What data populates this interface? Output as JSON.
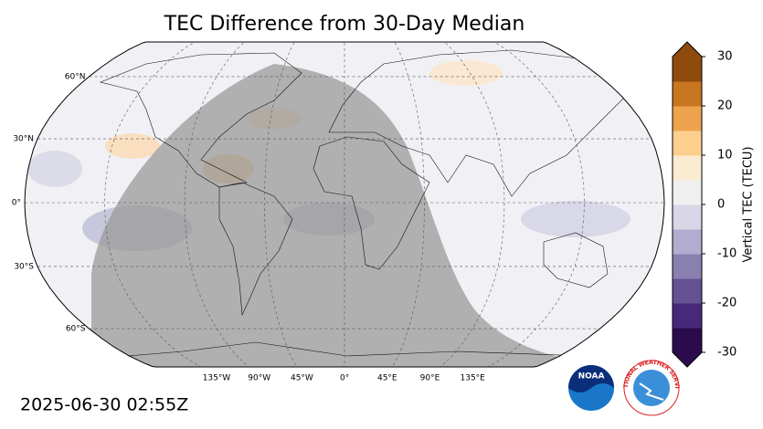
{
  "title": "TEC Difference from 30-Day Median",
  "map": {
    "lat_labels": [
      "60°N",
      "30°N",
      "0°",
      "30°S",
      "60°S"
    ],
    "lon_labels": [
      "135°W",
      "90°W",
      "45°W",
      "0°",
      "45°E",
      "90°E",
      "135°E"
    ]
  },
  "colorbar": {
    "label": "Vertical TEC (TECU)",
    "lim": [
      -30,
      30
    ],
    "ticks": [
      -30,
      -20,
      -10,
      0,
      10,
      20,
      30
    ],
    "colors": [
      "#2b0b4d",
      "#47297a",
      "#645293",
      "#8a80b0",
      "#b2add0",
      "#d8d6e7",
      "#f0efef",
      "#fbebd2",
      "#fdcf8e",
      "#eea34f",
      "#c97620",
      "#8f4b0d"
    ]
  },
  "timestamp": "2025-06-30 02:55Z",
  "logos": {
    "noaa": "NOAA",
    "nws": "NATIONAL WEATHER SERVICE"
  }
}
